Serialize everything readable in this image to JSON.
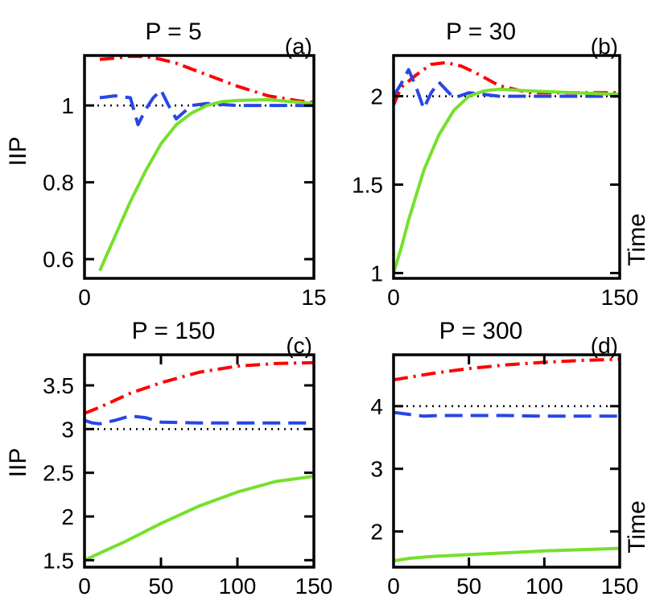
{
  "figure": {
    "ylabel": "IIP",
    "xlabel": "Time"
  },
  "chart_data": [
    {
      "type": "line",
      "tag": "(a)",
      "title": "P = 5",
      "xlim": [
        0,
        15
      ],
      "ylim": [
        0.55,
        1.13
      ],
      "xticks": [
        0,
        15
      ],
      "yticks": [
        0.6,
        0.8,
        1
      ],
      "ytick_labels": [
        "0.6",
        "0.8",
        "1"
      ],
      "reference": 1,
      "series": [
        {
          "name": "red-dashdot",
          "color": "#ff0000",
          "style": "dashdot",
          "width": 4,
          "x": [
            1,
            2,
            3,
            4,
            5,
            6,
            8,
            10,
            12,
            14,
            15
          ],
          "y": [
            1.12,
            1.123,
            1.128,
            1.127,
            1.12,
            1.11,
            1.08,
            1.05,
            1.025,
            1.012,
            1.008
          ]
        },
        {
          "name": "blue-dashed",
          "color": "#2846e6",
          "style": "dashed",
          "width": 4,
          "x": [
            1,
            2,
            3,
            3.5,
            4,
            4.5,
            5,
            5.5,
            6,
            7,
            8,
            10,
            12,
            15
          ],
          "y": [
            1.02,
            1.025,
            1.02,
            0.95,
            0.99,
            1.02,
            1.04,
            1.0,
            0.965,
            1.0,
            1.005,
            1.0,
            1.0,
            1.0
          ]
        },
        {
          "name": "green-solid",
          "color": "#76e02c",
          "style": "solid",
          "width": 4,
          "x": [
            1,
            2,
            3,
            4,
            5,
            6,
            7,
            8,
            9,
            10,
            12,
            15
          ],
          "y": [
            0.57,
            0.66,
            0.75,
            0.83,
            0.9,
            0.95,
            0.98,
            1.0,
            1.01,
            1.013,
            1.015,
            1.005
          ]
        }
      ]
    },
    {
      "type": "line",
      "tag": "(b)",
      "title": "P = 30",
      "xlim": [
        0,
        150
      ],
      "ylim": [
        0.97,
        2.23
      ],
      "xticks": [
        0,
        150
      ],
      "yticks": [
        1,
        1.5,
        2
      ],
      "ytick_labels": [
        "1",
        "1.5",
        "2"
      ],
      "reference": 2,
      "series": [
        {
          "name": "red-dashdot",
          "color": "#ff0000",
          "style": "dashdot",
          "width": 4,
          "x": [
            0,
            5,
            15,
            25,
            35,
            45,
            55,
            70,
            90,
            120,
            150
          ],
          "y": [
            1.95,
            2.05,
            2.12,
            2.18,
            2.19,
            2.17,
            2.13,
            2.06,
            2.02,
            2.02,
            2.02
          ]
        },
        {
          "name": "blue-dashed",
          "color": "#2846e6",
          "style": "dashed",
          "width": 4,
          "x": [
            0,
            5,
            10,
            15,
            20,
            25,
            30,
            40,
            50,
            70,
            100,
            150
          ],
          "y": [
            2.0,
            2.07,
            2.15,
            2.05,
            1.93,
            2.02,
            2.08,
            1.99,
            2.02,
            2.0,
            2.0,
            2.0
          ]
        },
        {
          "name": "green-solid",
          "color": "#76e02c",
          "style": "solid",
          "width": 4,
          "x": [
            0,
            5,
            10,
            20,
            30,
            40,
            50,
            60,
            70,
            90,
            120,
            150
          ],
          "y": [
            1.0,
            1.14,
            1.3,
            1.58,
            1.78,
            1.92,
            2.0,
            2.03,
            2.04,
            2.03,
            2.02,
            2.01
          ]
        }
      ]
    },
    {
      "type": "line",
      "tag": "(c)",
      "title": "P = 150",
      "xlim": [
        0,
        150
      ],
      "ylim": [
        1.42,
        3.85
      ],
      "xticks": [
        0,
        50,
        100,
        150
      ],
      "yticks": [
        1.5,
        2,
        2.5,
        3,
        3.5
      ],
      "ytick_labels": [
        "1.5",
        "2",
        "2.5",
        "3",
        "3.5"
      ],
      "reference": 3,
      "series": [
        {
          "name": "red-dashdot",
          "color": "#ff0000",
          "style": "dashdot",
          "width": 4,
          "x": [
            0,
            10,
            20,
            30,
            50,
            75,
            100,
            125,
            150
          ],
          "y": [
            3.18,
            3.25,
            3.33,
            3.41,
            3.53,
            3.65,
            3.72,
            3.75,
            3.76
          ]
        },
        {
          "name": "blue-dashed",
          "color": "#2846e6",
          "style": "dashed",
          "width": 4,
          "x": [
            0,
            5,
            10,
            20,
            30,
            40,
            50,
            75,
            100,
            150
          ],
          "y": [
            3.1,
            3.07,
            3.06,
            3.1,
            3.15,
            3.13,
            3.08,
            3.07,
            3.07,
            3.07
          ]
        },
        {
          "name": "green-solid",
          "color": "#76e02c",
          "style": "solid",
          "width": 4,
          "x": [
            0,
            10,
            25,
            50,
            75,
            100,
            125,
            150
          ],
          "y": [
            1.5,
            1.58,
            1.7,
            1.92,
            2.12,
            2.28,
            2.4,
            2.46
          ]
        }
      ]
    },
    {
      "type": "line",
      "tag": "(d)",
      "title": "P = 300",
      "xlim": [
        0,
        150
      ],
      "ylim": [
        1.43,
        4.82
      ],
      "xticks": [
        0,
        50,
        100,
        150
      ],
      "yticks": [
        2,
        3,
        4
      ],
      "ytick_labels": [
        "2",
        "3",
        "4"
      ],
      "reference": 4,
      "series": [
        {
          "name": "red-dashdot",
          "color": "#ff0000",
          "style": "dashdot",
          "width": 4,
          "x": [
            0,
            25,
            50,
            75,
            100,
            125,
            150
          ],
          "y": [
            4.42,
            4.52,
            4.6,
            4.66,
            4.7,
            4.73,
            4.75
          ]
        },
        {
          "name": "blue-dashed",
          "color": "#2846e6",
          "style": "dashed",
          "width": 4,
          "x": [
            0,
            10,
            20,
            30,
            50,
            75,
            100,
            150
          ],
          "y": [
            3.9,
            3.87,
            3.84,
            3.85,
            3.85,
            3.85,
            3.84,
            3.84
          ]
        },
        {
          "name": "green-solid",
          "color": "#76e02c",
          "style": "solid",
          "width": 4,
          "x": [
            0,
            10,
            25,
            50,
            75,
            100,
            125,
            150
          ],
          "y": [
            1.53,
            1.57,
            1.6,
            1.63,
            1.66,
            1.69,
            1.71,
            1.73
          ]
        }
      ]
    }
  ]
}
